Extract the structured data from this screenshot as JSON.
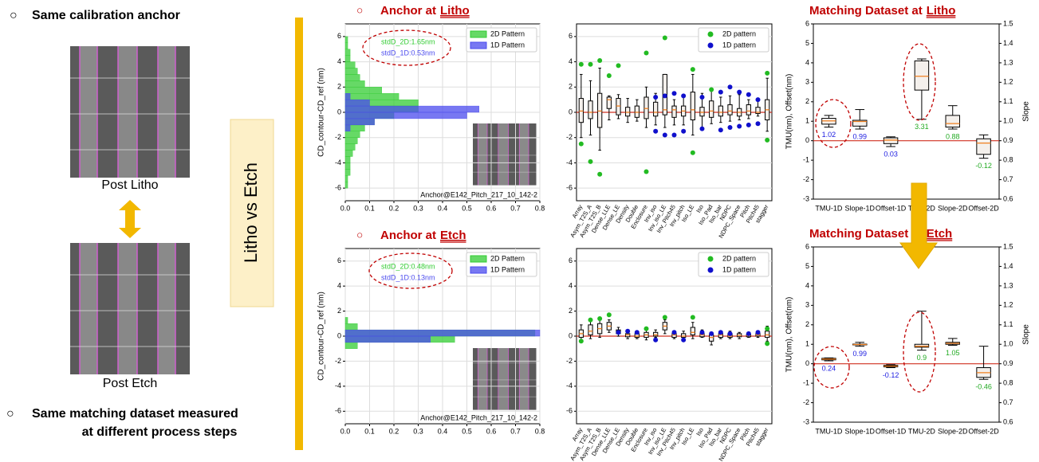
{
  "slide": {
    "bullets": [
      "Same calibration anchor",
      "Same matching dataset measured",
      "at different process steps"
    ],
    "captions": [
      "Post Litho",
      "Post Etch"
    ],
    "side_label": "Litho vs Etch"
  },
  "chart_data": [
    {
      "type": "histogram",
      "title": "Anchor at",
      "title_underlined": "Litho",
      "ylabel": "CD_contour-CD_ref (nm)",
      "orientation": "horizontal",
      "grid": true,
      "legend": "upper right",
      "annotations": [
        "stdD_2D:1.65nm",
        "stdD_1D:0.53nm"
      ],
      "footer": "Anchor@E142_Pitch_217_10_142-2",
      "bins": [
        -6,
        -5.5,
        -5,
        -4.5,
        -4,
        -3.5,
        -3,
        -2.5,
        -2,
        -1.5,
        -1,
        -0.5,
        0,
        0.5,
        1,
        1.5,
        2,
        2.5,
        3,
        3.5,
        4,
        4.5,
        5,
        5.5,
        6
      ],
      "series": [
        {
          "name": "2D Pattern",
          "color": "#33cc33",
          "values": [
            0.01,
            0.01,
            0.02,
            0.02,
            0.02,
            0.03,
            0.04,
            0.05,
            0.06,
            0.08,
            0.12,
            0.2,
            0.3,
            0.3,
            0.22,
            0.15,
            0.08,
            0.06,
            0.05,
            0.04,
            0.02,
            0.02,
            0.01,
            0.01
          ]
        },
        {
          "name": "1D Pattern",
          "color": "#4b4bee",
          "values": [
            0,
            0,
            0,
            0,
            0,
            0,
            0,
            0,
            0,
            0.02,
            0.12,
            0.5,
            0.55,
            0.1,
            0.02,
            0,
            0,
            0,
            0,
            0,
            0,
            0,
            0,
            0
          ]
        }
      ],
      "xlim": [
        0,
        0.8
      ],
      "xticks": [
        {
          "value": 0,
          "label": "0.0"
        },
        0.1,
        0.2,
        0.3,
        0.4,
        0.5,
        0.6,
        0.7,
        0.8
      ],
      "ylim": [
        -7,
        7
      ],
      "yticks": [
        -6,
        -4,
        -2,
        0,
        2,
        4,
        6
      ]
    },
    {
      "type": "box",
      "grid": true,
      "legend": "upper right",
      "categories": [
        "Array",
        "Asym_T2S_A",
        "Asym_T2S_B",
        "Dense_LLE",
        "Dense_LE",
        "Density",
        "Double",
        "Enclosure",
        "Inv_iso",
        "Inv_iso_LE",
        "Inv_Pitch45",
        "Inv_pitch",
        "Iso_LE",
        "Iso",
        "Iso_Pad",
        "Iso_bar",
        "NDPC",
        "NDPC_Space",
        "Pitch",
        "Pitch45",
        "stagger"
      ],
      "low": [
        -2,
        -1.8,
        -3,
        -0.6,
        -0.5,
        -0.8,
        -0.7,
        -1.2,
        -1,
        -1.2,
        -1,
        -1,
        -1.8,
        -1.2,
        -0.9,
        -0.8,
        -0.7,
        -0.6,
        -0.5,
        -0.3,
        -1.5
      ],
      "q1": [
        -0.8,
        -0.5,
        -1.2,
        0.3,
        -0.2,
        -0.3,
        -0.4,
        -0.5,
        -0.3,
        -0.2,
        -0.4,
        -0.3,
        -0.6,
        -0.3,
        -0.4,
        -0.3,
        -0.2,
        -0.3,
        -0.2,
        -0.1,
        -0.6
      ],
      "median": [
        0.1,
        0,
        0.1,
        1,
        0.5,
        0,
        0,
        0.3,
        0,
        0.2,
        0.2,
        0.1,
        0.2,
        0,
        0.1,
        0,
        0.1,
        0,
        0.1,
        0,
        0.2
      ],
      "q3": [
        1.1,
        0.9,
        1.5,
        1.2,
        1.1,
        0.4,
        0.5,
        1.2,
        0.8,
        3,
        0.5,
        0.5,
        1.6,
        0.4,
        0.9,
        0.5,
        0.6,
        0.3,
        0.6,
        0.4,
        1
      ],
      "high": [
        3,
        2.5,
        3.5,
        1.3,
        1.4,
        1.1,
        1,
        2,
        1.5,
        3,
        1,
        1.2,
        3,
        1.5,
        1.8,
        1.2,
        1.3,
        1.4,
        1,
        0.9,
        2.7
      ],
      "series": [
        {
          "name": "2D pattern",
          "color": "#22bb22",
          "values": [
            [
              3.8,
              -2.5
            ],
            [
              3.8,
              -3.9
            ],
            [
              4.1,
              -4.9
            ],
            [
              2.9
            ],
            [
              3.7
            ],
            [],
            [],
            [
              4.7,
              -4.7
            ],
            [],
            [
              5.9
            ],
            [],
            [],
            [
              3.4,
              -3.2
            ],
            [],
            [
              1.8
            ],
            [],
            [],
            [],
            [],
            [],
            [
              3.1,
              -2.2
            ]
          ]
        },
        {
          "name": "1D pattern",
          "color": "#1010cc",
          "values": [
            [],
            [],
            [],
            [],
            [],
            [],
            [],
            [],
            [
              1.2,
              -1.5
            ],
            [
              1.3,
              -1.8
            ],
            [
              1.5,
              -1.8
            ],
            [
              1.3,
              -1.5
            ],
            [],
            [
              1.2,
              -1.3
            ],
            [],
            [
              1.6,
              -1.4
            ],
            [
              2,
              -1.2
            ],
            [
              1.6,
              -1.1
            ],
            [
              1.4,
              -1
            ],
            [
              1,
              -0.9
            ],
            []
          ]
        }
      ],
      "ylim": [
        -7,
        7
      ],
      "yticks": [
        -6,
        -4,
        -2,
        0,
        2,
        4,
        6
      ]
    },
    {
      "type": "box",
      "title": "Matching Dataset at",
      "title_underlined": "Litho",
      "ylabel": "TMU(nm), Offset(nm)",
      "y2label": "Slope",
      "grid": false,
      "value_labels_shown": true,
      "categories": [
        "TMU-1D",
        "Slope-1D",
        "Offset-1D",
        "TMU-2D",
        "Slope-2D",
        "Offset-2D"
      ],
      "low": [
        0.7,
        0.6,
        -0.3,
        1.1,
        0.6,
        -0.9
      ],
      "q1": [
        0.85,
        0.75,
        -0.15,
        2.6,
        0.7,
        -0.7
      ],
      "median": [
        1.02,
        0.99,
        0.03,
        3.31,
        0.88,
        -0.12
      ],
      "q3": [
        1.15,
        1.05,
        0.15,
        4.1,
        1.3,
        0.1
      ],
      "high": [
        1.3,
        1.6,
        0.2,
        4.2,
        1.8,
        0.3
      ],
      "label_colors": [
        "#1a1ae0",
        "#1a1ae0",
        "#1a1ae0",
        "#22aa22",
        "#22aa22",
        "#22aa22"
      ],
      "ylim": [
        -3,
        6
      ],
      "yticks": [
        -3,
        -2,
        -1,
        0,
        1,
        2,
        3,
        4,
        5,
        6
      ],
      "y2lim": [
        0.6,
        1.5
      ],
      "y2ticks": [
        0.6,
        0.7,
        0.8,
        0.9,
        {
          "value": 1,
          "label": "1.0"
        },
        1.1,
        1.2,
        1.3,
        1.4,
        1.5
      ]
    },
    {
      "type": "histogram",
      "title": "Anchor at",
      "title_underlined": "Etch",
      "ylabel": "CD_contour-CD_ref (nm)",
      "orientation": "horizontal",
      "grid": true,
      "legend": "upper right",
      "annotations": [
        "stdD_2D:0.48nm",
        "stdD_1D:0.13nm"
      ],
      "footer": "Anchor@E142_Pitch_217_10_142-2",
      "bins": [
        -6,
        -5.5,
        -5,
        -4.5,
        -4,
        -3.5,
        -3,
        -2.5,
        -2,
        -1.5,
        -1,
        -0.5,
        0,
        0.5,
        1,
        1.5,
        2,
        2.5,
        3,
        3.5,
        4,
        4.5,
        5,
        5.5,
        6
      ],
      "series": [
        {
          "name": "2D Pattern",
          "color": "#33cc33",
          "values": [
            0,
            0,
            0,
            0,
            0,
            0,
            0,
            0,
            0,
            0,
            0.05,
            0.45,
            0.78,
            0.05,
            0.01,
            0,
            0,
            0,
            0,
            0,
            0,
            0,
            0,
            0
          ]
        },
        {
          "name": "1D Pattern",
          "color": "#4b4bee",
          "values": [
            0,
            0,
            0,
            0,
            0,
            0,
            0,
            0,
            0,
            0,
            0,
            0.35,
            0.8,
            0,
            0,
            0,
            0,
            0,
            0,
            0,
            0,
            0,
            0,
            0
          ]
        }
      ],
      "xlim": [
        0,
        0.8
      ],
      "xticks": [
        {
          "value": 0,
          "label": "0.0"
        },
        0.1,
        0.2,
        0.3,
        0.4,
        0.5,
        0.6,
        0.7,
        0.8
      ],
      "ylim": [
        -7,
        7
      ],
      "yticks": [
        -6,
        -4,
        -2,
        0,
        2,
        4,
        6
      ]
    },
    {
      "type": "box",
      "grid": true,
      "legend": "upper right",
      "categories": [
        "Array",
        "Asym_T2S_A",
        "Asym_T2S_B",
        "Dense_LLE",
        "Dense_LE",
        "Density",
        "Double",
        "Enclosure",
        "Inv_iso",
        "Inv_iso_LE",
        "Inv_Pitch45",
        "Inv_pitch",
        "Iso_LE",
        "Iso",
        "Iso_Pad",
        "Iso_bar",
        "NDPC",
        "NDPC_Space",
        "Pitch",
        "Pitch45",
        "stagger"
      ],
      "low": [
        -0.3,
        -0.2,
        -0.1,
        0.3,
        0,
        -0.2,
        -0.2,
        -0.3,
        -0.1,
        0.2,
        -0.2,
        -0.2,
        -0.2,
        -0.1,
        -0.7,
        -0.2,
        -0.2,
        -0.2,
        -0.1,
        -0.1,
        -0.4
      ],
      "q1": [
        -0.1,
        0.1,
        0.2,
        0.5,
        0.2,
        -0.05,
        -0.1,
        -0.1,
        0,
        0.5,
        -0.1,
        -0.1,
        0.1,
        -0.05,
        -0.4,
        -0.1,
        -0.1,
        -0.05,
        -0.05,
        0,
        -0.1
      ],
      "median": [
        0.2,
        0.4,
        0.6,
        0.8,
        0.3,
        0.1,
        0,
        0.1,
        0.1,
        0.8,
        0.1,
        0,
        0.3,
        0.1,
        -0.1,
        0.1,
        0,
        0.05,
        0.05,
        0.1,
        0.1
      ],
      "q3": [
        0.5,
        0.9,
        1,
        1.1,
        0.5,
        0.2,
        0.2,
        0.3,
        0.3,
        1.1,
        0.2,
        0.2,
        0.7,
        0.2,
        0.1,
        0.2,
        0.2,
        0.2,
        0.15,
        0.2,
        0.4
      ],
      "high": [
        0.9,
        1.2,
        1.3,
        1.3,
        0.7,
        0.4,
        0.4,
        0.6,
        0.5,
        1.3,
        0.4,
        0.4,
        1.1,
        0.5,
        0.3,
        0.4,
        0.4,
        0.3,
        0.3,
        0.4,
        0.8
      ],
      "series": [
        {
          "name": "2D pattern",
          "color": "#22bb22",
          "values": [
            [
              -0.4
            ],
            [
              1.3
            ],
            [
              1.4
            ],
            [
              1.7
            ],
            [],
            [],
            [],
            [
              0.6
            ],
            [],
            [
              1.5
            ],
            [],
            [],
            [
              1.5
            ],
            [],
            [],
            [],
            [],
            [],
            [],
            [],
            [
              0.6,
              -0.6
            ]
          ]
        },
        {
          "name": "1D pattern",
          "color": "#1010cc",
          "values": [
            [],
            [],
            [],
            [],
            [
              0.3
            ],
            [
              0.4
            ],
            [
              0.3
            ],
            [],
            [
              -0.3
            ],
            [],
            [
              0.3
            ],
            [
              -0.3
            ],
            [],
            [
              0.3
            ],
            [
              0.2
            ],
            [
              0.3
            ],
            [
              0.2
            ],
            [],
            [
              0.2
            ],
            [
              0.3
            ],
            []
          ]
        }
      ],
      "ylim": [
        -7,
        7
      ],
      "yticks": [
        -6,
        -4,
        -2,
        0,
        2,
        4,
        6
      ]
    },
    {
      "type": "box",
      "title": "Matching Dataset at",
      "title_underlined": "Etch",
      "ylabel": "TMU(nm), Offset(nm)",
      "y2label": "Slope",
      "grid": false,
      "value_labels_shown": true,
      "categories": [
        "TMU-1D",
        "Slope-1D",
        "Offset-1D",
        "TMU-2D",
        "Slope-2D",
        "Offset-2D"
      ],
      "low": [
        0.15,
        0.9,
        -0.2,
        0.7,
        0.95,
        -0.8
      ],
      "q1": [
        0.2,
        0.97,
        -0.16,
        0.85,
        1,
        -0.7
      ],
      "median": [
        0.24,
        0.99,
        -0.12,
        0.9,
        1.05,
        -0.46
      ],
      "q3": [
        0.28,
        1.01,
        -0.08,
        1,
        1.1,
        -0.2
      ],
      "high": [
        0.3,
        1.1,
        -0.05,
        2.7,
        1.3,
        0.9
      ],
      "label_colors": [
        "#1a1ae0",
        "#1a1ae0",
        "#1a1ae0",
        "#22aa22",
        "#22aa22",
        "#22aa22"
      ],
      "ylim": [
        -3,
        6
      ],
      "yticks": [
        -3,
        -2,
        -1,
        0,
        1,
        2,
        3,
        4,
        5,
        6
      ],
      "y2lim": [
        0.6,
        1.5
      ],
      "y2ticks": [
        0.6,
        0.7,
        0.8,
        0.9,
        {
          "value": 1,
          "label": "1.0"
        },
        1.1,
        1.2,
        1.3,
        1.4,
        1.5
      ]
    }
  ]
}
